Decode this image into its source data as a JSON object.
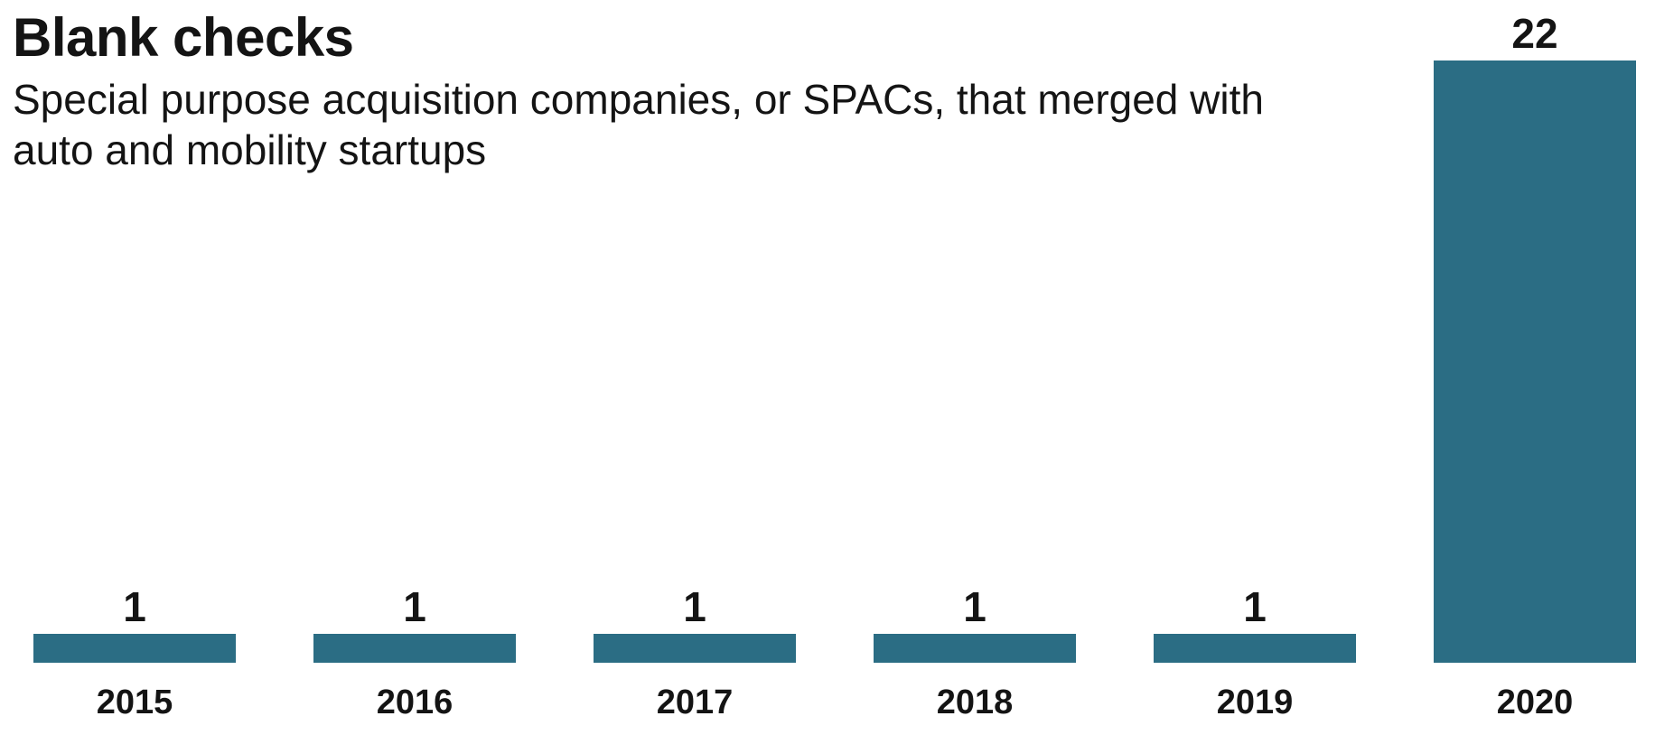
{
  "chart_data": {
    "type": "bar",
    "title": "Blank checks",
    "subtitle": "Special purpose acquisition companies, or SPACs, that merged with auto and mobility startups",
    "categories": [
      "2015",
      "2016",
      "2017",
      "2018",
      "2019",
      "2020"
    ],
    "values": [
      1,
      1,
      1,
      1,
      1,
      22
    ],
    "data_labels": [
      "1",
      "1",
      "1",
      "1",
      "1",
      "22"
    ],
    "xlabel": "",
    "ylabel": "",
    "ylim": [
      0,
      22
    ],
    "grid": false,
    "legend": "none",
    "bar_color": "#2b6d84"
  }
}
